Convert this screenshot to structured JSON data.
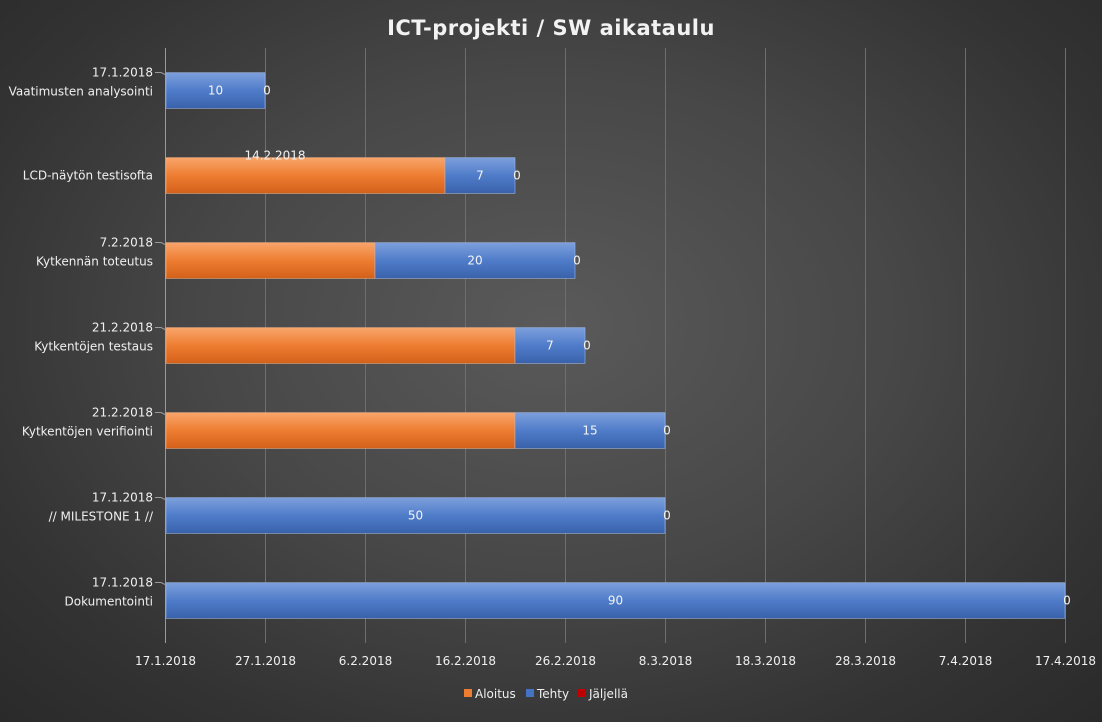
{
  "chart_data": {
    "type": "bar",
    "orientation": "horizontal",
    "stacked": true,
    "title": "ICT-projekti / SW aikataulu",
    "x_axis": {
      "type": "date",
      "range": [
        "2018-01-17",
        "2018-04-17"
      ],
      "tick_labels": [
        "17.1.2018",
        "27.1.2018",
        "6.2.2018",
        "16.2.2018",
        "26.2.2018",
        "8.3.2018",
        "18.3.2018",
        "28.3.2018",
        "7.4.2018",
        "17.4.2018"
      ],
      "grid": true
    },
    "categories": [
      {
        "name": "Vaatimusten analysointi",
        "start_label": "17.1.2018"
      },
      {
        "name": "LCD-näytön testisofta",
        "start_label": "14.2.2018"
      },
      {
        "name": "Kytkennän toteutus",
        "start_label": "7.2.2018"
      },
      {
        "name": "Kytkentöjen testaus",
        "start_label": "21.2.2018"
      },
      {
        "name": "Kytkentöjen verifiointi",
        "start_label": "21.2.2018"
      },
      {
        "name": "// MILESTONE 1 //",
        "start_label": "17.1.2018"
      },
      {
        "name": "Dokumentointi",
        "start_label": "17.1.2018"
      }
    ],
    "series": [
      {
        "name": "Aloitus",
        "color": "#ed7d31",
        "values": [
          "2018-01-17",
          "2018-02-14",
          "2018-02-07",
          "2018-02-21",
          "2018-02-21",
          "2018-01-17",
          "2018-01-17"
        ]
      },
      {
        "name": "Tehty",
        "color": "#4472c4",
        "values": [
          10,
          7,
          20,
          7,
          15,
          50,
          90
        ]
      },
      {
        "name": "Jäljellä",
        "color": "#c00000",
        "values": [
          0,
          0,
          0,
          0,
          0,
          0,
          0
        ]
      }
    ],
    "legend_position": "bottom"
  }
}
